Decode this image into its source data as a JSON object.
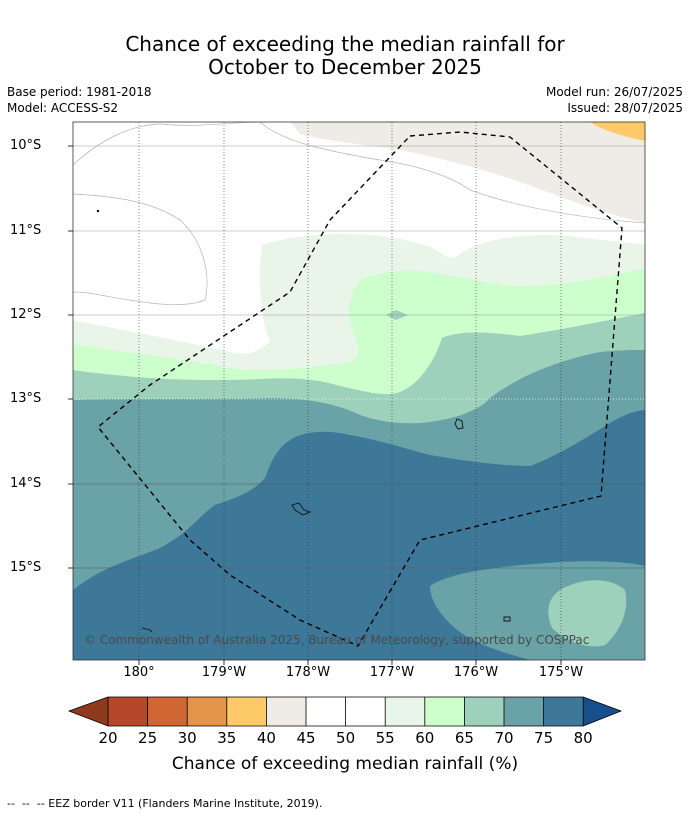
{
  "title": {
    "line1": "Chance of exceeding the median rainfall for",
    "line2": "October to December 2025"
  },
  "meta": {
    "base_period": "Base period: 1981-2018",
    "model": "Model: ACCESS-S2",
    "model_run": "Model run: 26/07/2025",
    "issued": "Issued: 28/07/2025"
  },
  "map": {
    "lat_labels": [
      "10°S",
      "11°S",
      "12°S",
      "13°S",
      "14°S",
      "15°S"
    ],
    "lon_labels": [
      "180°",
      "179°W",
      "178°W",
      "177°W",
      "176°W",
      "175°W"
    ],
    "copyright": "© Commonwealth of Australia 2025, Bureau of Meteorology, supported by COSPPac"
  },
  "colorbar": {
    "ticks": [
      "20",
      "25",
      "30",
      "35",
      "40",
      "45",
      "50",
      "55",
      "60",
      "65",
      "70",
      "75",
      "80"
    ],
    "colors": {
      "below20": "#8f3a1f",
      "c20_25": "#b5482a",
      "c25_30": "#cf6633",
      "c30_35": "#e3944a",
      "c35_40": "#fec968",
      "c40_45": "#efebe7",
      "c45_50": "#ffffff",
      "c50_55": "#ffffff",
      "c55_60": "#eaf5ea",
      "c60_65": "#ccffcc",
      "c65_70": "#9dd1bb",
      "c70_75": "#6aa3a7",
      "c75_80": "#3e7898",
      "above80": "#15508c"
    },
    "label": "Chance of exceeding median rainfall (%)"
  },
  "footnote": "--  --  -- EEZ border V11 (Flanders Marine Institute, 2019)."
}
